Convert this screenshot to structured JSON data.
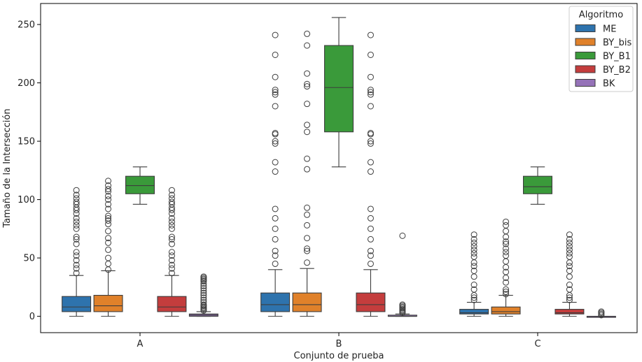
{
  "chart_data": {
    "type": "box",
    "xlabel": "Conjunto de prueba",
    "ylabel": "Tamaño de la Intersección",
    "categories": [
      "A",
      "B",
      "C"
    ],
    "ylim": [
      -14,
      268
    ],
    "yticks": [
      0,
      50,
      100,
      150,
      200,
      250
    ],
    "grid": false,
    "legend": {
      "title": "Algoritmo",
      "placement": "top-right"
    },
    "series": [
      {
        "name": "ME",
        "color": "#2e73ad",
        "boxes": [
          {
            "q1": 4,
            "median": 8,
            "q3": 17,
            "whisker_low": 0,
            "whisker_high": 35,
            "outliers": [
              37,
              41,
              44,
              48,
              52,
              55,
              62,
              66,
              68,
              75,
              78,
              81,
              84,
              88,
              91,
              93,
              96,
              98,
              101,
              104,
              108
            ]
          },
          {
            "q1": 4,
            "median": 10,
            "q3": 20,
            "whisker_low": 0,
            "whisker_high": 40,
            "outliers": [
              45,
              52,
              56,
              66,
              75,
              84,
              92,
              124,
              132,
              148,
              150,
              156,
              157,
              180,
              190,
              192,
              194,
              205,
              224,
              241
            ]
          },
          {
            "q1": 2,
            "median": 3,
            "q3": 6,
            "whisker_low": 0,
            "whisker_high": 12,
            "outliers": [
              14,
              16,
              18,
              23,
              27,
              34,
              39,
              43,
              46,
              51,
              54,
              57,
              60,
              63,
              66,
              70
            ]
          }
        ]
      },
      {
        "name": "BY_bis",
        "color": "#e0812a",
        "boxes": [
          {
            "q1": 4,
            "median": 9,
            "q3": 18,
            "whisker_low": 0,
            "whisker_high": 39,
            "outliers": [
              40,
              45,
              50,
              57,
              63,
              67,
              73,
              79,
              82,
              84,
              86,
              92,
              96,
              100,
              103,
              107,
              109,
              112,
              116
            ]
          },
          {
            "q1": 4,
            "median": 10,
            "q3": 20,
            "whisker_low": 0,
            "whisker_high": 41,
            "outliers": [
              46,
              56,
              58,
              67,
              78,
              87,
              93,
              126,
              135,
              158,
              164,
              182,
              197,
              199,
              208,
              232,
              242
            ]
          },
          {
            "q1": 2,
            "median": 4,
            "q3": 8,
            "whisker_low": 0,
            "whisker_high": 18,
            "outliers": [
              19,
              21,
              23,
              29,
              33,
              38,
              42,
              47,
              52,
              55,
              58,
              62,
              64,
              68,
              73,
              78,
              81
            ]
          }
        ]
      },
      {
        "name": "BY_B1",
        "color": "#3a9a3a",
        "boxes": [
          {
            "q1": 105,
            "median": 112,
            "q3": 120,
            "whisker_low": 96,
            "whisker_high": 128,
            "outliers": []
          },
          {
            "q1": 158,
            "median": 196,
            "q3": 232,
            "whisker_low": 128,
            "whisker_high": 256,
            "outliers": []
          },
          {
            "q1": 105,
            "median": 111,
            "q3": 120,
            "whisker_low": 96,
            "whisker_high": 128,
            "outliers": []
          }
        ]
      },
      {
        "name": "BY_B2",
        "color": "#c43d3d",
        "boxes": [
          {
            "q1": 4,
            "median": 8,
            "q3": 17,
            "whisker_low": 0,
            "whisker_high": 35,
            "outliers": [
              37,
              41,
              44,
              48,
              52,
              55,
              62,
              66,
              68,
              75,
              78,
              81,
              84,
              88,
              91,
              93,
              96,
              98,
              101,
              104,
              108
            ]
          },
          {
            "q1": 4,
            "median": 10,
            "q3": 20,
            "whisker_low": 0,
            "whisker_high": 40,
            "outliers": [
              45,
              52,
              56,
              66,
              75,
              84,
              92,
              124,
              132,
              148,
              150,
              156,
              157,
              180,
              190,
              192,
              194,
              205,
              224,
              241
            ]
          },
          {
            "q1": 2,
            "median": 3,
            "q3": 6,
            "whisker_low": 0,
            "whisker_high": 12,
            "outliers": [
              14,
              16,
              18,
              23,
              27,
              34,
              39,
              43,
              46,
              51,
              54,
              57,
              60,
              63,
              66,
              70
            ]
          }
        ]
      },
      {
        "name": "BK",
        "color": "#9572b8",
        "boxes": [
          {
            "q1": 0,
            "median": 1,
            "q3": 2,
            "whisker_low": 0,
            "whisker_high": 4,
            "outliers": [
              5,
              6,
              7,
              8,
              9,
              10,
              12,
              14,
              16,
              18,
              20,
              22,
              24,
              26,
              28,
              30,
              31,
              32,
              33,
              34
            ]
          },
          {
            "q1": 0,
            "median": 0,
            "q3": 1,
            "whisker_low": 0,
            "whisker_high": 2,
            "outliers": [
              3,
              4,
              5,
              6,
              7,
              8,
              9,
              10,
              69
            ]
          },
          {
            "q1": 0,
            "median": 0,
            "q3": 0,
            "whisker_low": 0,
            "whisker_high": 0,
            "outliers": [
              1,
              2,
              3,
              4
            ]
          }
        ]
      }
    ]
  }
}
